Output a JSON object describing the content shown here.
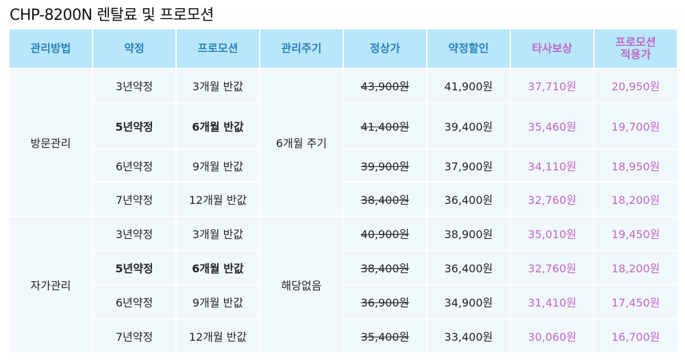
{
  "title": "CHP-8200N 렌탈료 및 프로모션",
  "colors": {
    "header_bg": "#b8e7fb",
    "header_text": "#2b80b9",
    "accent_pink": "#c065c6",
    "cell_bg": "#f0f8fc"
  },
  "headers": [
    "관리방법",
    "약정",
    "프로모션",
    "관리주기",
    "정상가",
    "약정할인",
    "타사보상",
    "프로모션\n적용가"
  ],
  "groups": [
    {
      "method": "방문관리",
      "cycle": "6개월 주기",
      "rows": [
        {
          "term": "3년약정",
          "promo": "3개월 반값",
          "regular": "43,900원",
          "discount": "41,900원",
          "trade": "37,710원",
          "final": "20,950원"
        },
        {
          "term": "5년약정",
          "promo": "6개월 반값",
          "regular": "41,400원",
          "discount": "39,400원",
          "trade": "35,460원",
          "final": "19,700원"
        },
        {
          "term": "6년약정",
          "promo": "9개월 반값",
          "regular": "39,900원",
          "discount": "37,900원",
          "trade": "34,110원",
          "final": "18,950원"
        },
        {
          "term": "7년약정",
          "promo": "12개월 반값",
          "regular": "38,400원",
          "discount": "36,400원",
          "trade": "32,760원",
          "final": "18,200원"
        }
      ]
    },
    {
      "method": "자가관리",
      "cycle": "해당없음",
      "rows": [
        {
          "term": "3년약정",
          "promo": "3개월 반값",
          "regular": "40,900원",
          "discount": "38,900원",
          "trade": "35,010원",
          "final": "19,450원"
        },
        {
          "term": "5년약정",
          "promo": "6개월 반값",
          "regular": "38,400원",
          "discount": "36,400원",
          "trade": "32,760원",
          "final": "18,200원"
        },
        {
          "term": "6년약정",
          "promo": "9개월 반값",
          "regular": "36,900원",
          "discount": "34,900원",
          "trade": "31,410원",
          "final": "17,450원"
        },
        {
          "term": "7년약정",
          "promo": "12개월 반값",
          "regular": "35,400원",
          "discount": "33,400원",
          "trade": "30,060원",
          "final": "16,700원"
        }
      ]
    }
  ]
}
